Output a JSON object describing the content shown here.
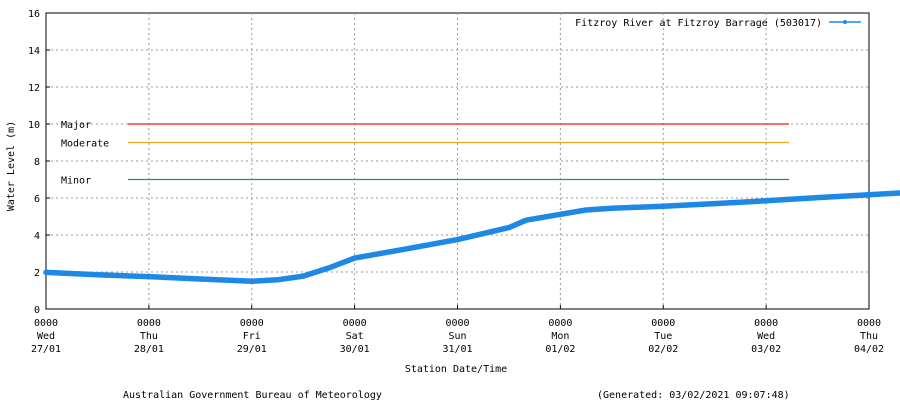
{
  "chart_data": {
    "type": "line",
    "title": "",
    "xlabel": "Station Date/Time",
    "ylabel": "Water Level (m)",
    "ylim": [
      0,
      16
    ],
    "yticks": [
      0,
      2,
      4,
      6,
      8,
      10,
      12,
      14,
      16
    ],
    "grid": true,
    "legend_position": "top-right",
    "xlim": [
      "2021-01-27 00:00",
      "2021-02-04 00:00"
    ],
    "x_ticks": [
      {
        "time": "0000",
        "day": "Wed",
        "date": "27/01"
      },
      {
        "time": "0000",
        "day": "Thu",
        "date": "28/01"
      },
      {
        "time": "0000",
        "day": "Fri",
        "date": "29/01"
      },
      {
        "time": "0000",
        "day": "Sat",
        "date": "30/01"
      },
      {
        "time": "0000",
        "day": "Sun",
        "date": "31/01"
      },
      {
        "time": "0000",
        "day": "Mon",
        "date": "01/02"
      },
      {
        "time": "0000",
        "day": "Tue",
        "date": "02/02"
      },
      {
        "time": "0000",
        "day": "Wed",
        "date": "03/02"
      },
      {
        "time": "0000",
        "day": "Thu",
        "date": "04/02"
      }
    ],
    "series": [
      {
        "name": "Fitzroy River at Fitzroy Barrage (503017)",
        "color": "#1e88e5",
        "points": [
          [
            "2021-01-27 00:00",
            1.98
          ],
          [
            "2021-01-27 12:00",
            1.85
          ],
          [
            "2021-01-28 00:00",
            1.75
          ],
          [
            "2021-01-28 12:00",
            1.62
          ],
          [
            "2021-01-29 00:00",
            1.5
          ],
          [
            "2021-01-29 06:00",
            1.58
          ],
          [
            "2021-01-29 12:00",
            1.78
          ],
          [
            "2021-01-29 18:00",
            2.22
          ],
          [
            "2021-01-30 00:00",
            2.75
          ],
          [
            "2021-01-30 12:00",
            3.25
          ],
          [
            "2021-01-31 00:00",
            3.75
          ],
          [
            "2021-01-31 12:00",
            4.4
          ],
          [
            "2021-01-31 16:00",
            4.8
          ],
          [
            "2021-02-01 00:00",
            5.12
          ],
          [
            "2021-02-01 06:00",
            5.35
          ],
          [
            "2021-02-01 12:00",
            5.45
          ],
          [
            "2021-02-02 00:00",
            5.55
          ],
          [
            "2021-02-02 12:00",
            5.7
          ],
          [
            "2021-02-03 00:00",
            5.85
          ],
          [
            "2021-02-03 12:00",
            6.02
          ],
          [
            "2021-02-04 00:00",
            6.18
          ],
          [
            "2021-02-04 12:00",
            6.33
          ]
        ]
      }
    ],
    "thresholds": [
      {
        "label": "Major",
        "value": 10,
        "color": "#e8211b"
      },
      {
        "label": "Moderate",
        "value": 9,
        "color": "#f5a81c"
      },
      {
        "label": "Minor",
        "value": 7,
        "color": "#2e8b57"
      }
    ]
  },
  "footer": {
    "left": "Australian Government Bureau of Meteorology",
    "right": "(Generated: 03/02/2021 09:07:48)"
  }
}
